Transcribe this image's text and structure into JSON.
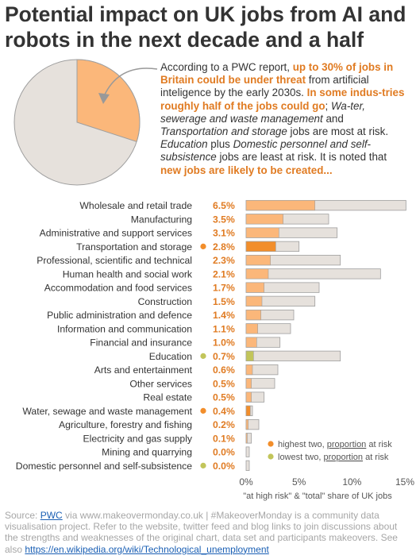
{
  "title": "Potential impact on UK jobs from AI and robots in the next decade and a half",
  "intro": {
    "t1": "According to a PWC report, ",
    "h1": "up to 30% of jobs in Britain could be under threat",
    "t2": " from artificial inteligence by the early 2030s. ",
    "h2": "In some indus-tries roughly half of the jobs could go",
    "t3": "; ",
    "i1": "Wa-ter, sewerage and waste management",
    "t4": " and ",
    "i2": "Transportation and storage",
    "t5": " jobs are most at risk. ",
    "i3": "Education",
    "t6": " plus ",
    "i4": "Domestic personnel and self-subsistence",
    "t7": " jobs are least at risk. It is noted that ",
    "h3": "new jobs are likely to be created..."
  },
  "pie_share_at_risk": 0.3,
  "colors": {
    "orange": "#f28e2b",
    "light_orange": "#fbb77a",
    "olive": "#c2c55a",
    "grey_fill": "#e6e1dc",
    "grey_outline": "#9f9f9f",
    "text_orange": "#e07b22"
  },
  "chart_data": {
    "type": "bar",
    "categories": [
      "Wholesale and retail trade",
      "Manufacturing",
      "Administrative and support services",
      "Transportation and storage",
      "Professional, scientific and technical",
      "Human health and social work",
      "Accommodation and food services",
      "Construction",
      "Public administration and defence",
      "Information and communication",
      "Financial and insurance",
      "Education",
      "Arts and entertainment",
      "Other services",
      "Real estate",
      "Water, sewage and waste management",
      "Agriculture, forestry and fishing",
      "Electricity and gas supply",
      "Mining and quarrying",
      "Domestic personnel and self-subsistence"
    ],
    "at_risk_labels": [
      "6.5%",
      "3.5%",
      "3.1%",
      "2.8%",
      "2.3%",
      "2.1%",
      "1.7%",
      "1.5%",
      "1.4%",
      "1.1%",
      "1.0%",
      "0.7%",
      "0.6%",
      "0.5%",
      "0.5%",
      "0.4%",
      "0.2%",
      "0.1%",
      "0.0%",
      "0.0%"
    ],
    "series": [
      {
        "name": "at high risk",
        "values": [
          6.5,
          3.5,
          3.1,
          2.8,
          2.3,
          2.1,
          1.7,
          1.5,
          1.4,
          1.1,
          1.0,
          0.7,
          0.6,
          0.5,
          0.5,
          0.4,
          0.2,
          0.1,
          0.0,
          0.0
        ]
      },
      {
        "name": "total",
        "values": [
          15.1,
          7.8,
          8.6,
          5.0,
          8.9,
          12.7,
          6.9,
          6.5,
          4.5,
          4.2,
          3.2,
          8.9,
          3.0,
          2.7,
          1.7,
          0.6,
          1.2,
          0.5,
          0.3,
          0.3
        ]
      }
    ],
    "highlight": [
      {
        "index": 3,
        "kind": "highest"
      },
      {
        "index": 15,
        "kind": "highest"
      },
      {
        "index": 11,
        "kind": "lowest"
      },
      {
        "index": 19,
        "kind": "lowest"
      }
    ],
    "x_ticks": [
      "0%",
      "5%",
      "10%",
      "15%"
    ],
    "x_tick_values": [
      0,
      5,
      10,
      15
    ],
    "xlim": [
      0,
      15.5
    ],
    "xlabel": "\"at high risk\" & \"total\" share of UK jobs",
    "legend": {
      "highest_pre": "highest two, ",
      "highest_link": "proportion",
      "highest_post": " at risk",
      "lowest_pre": "lowest two, ",
      "lowest_link": "proportion",
      "lowest_post": " at risk"
    }
  },
  "source": {
    "t1": "Source: ",
    "link1": "PWC",
    "t2": " via www.makeovermonday.co.uk | #MakeoverMonday is a community data visualisation project. Refer to the website, twitter feed and blog links to join discussions about the strengths and weaknesses of the original chart, data set and participants makeovers. See also ",
    "link2": "https://en.wikipedia.org/wiki/Technological_unemployment"
  }
}
